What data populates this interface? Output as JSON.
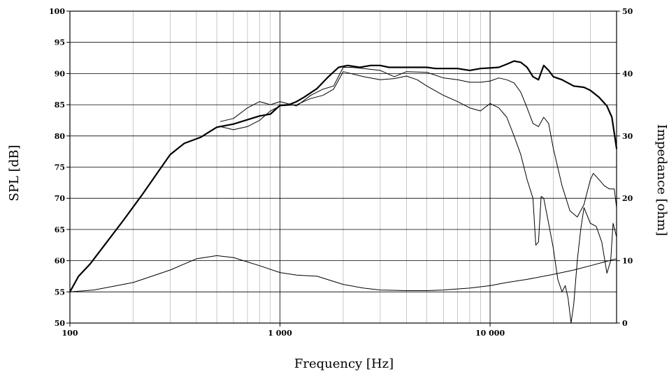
{
  "chart_data": {
    "type": "line",
    "title": "",
    "xlabel": "Frequency [Hz]",
    "ylabel": "SPL [dB]",
    "y2label": "Impedance [ohm]",
    "xscale": "log",
    "xlim": [
      100,
      40000
    ],
    "ylim": [
      50,
      100
    ],
    "y2lim": [
      0,
      50
    ],
    "grid": true,
    "legend": "none",
    "x_ticks": [
      {
        "value": 100,
        "label": "100"
      },
      {
        "value": 1000,
        "label": "1 000"
      },
      {
        "value": 10000,
        "label": "10 000"
      }
    ],
    "y_ticks": [
      "50",
      "55",
      "60",
      "65",
      "70",
      "75",
      "80",
      "85",
      "90",
      "95",
      "100"
    ],
    "y2_ticks": [
      "0",
      "10",
      "20",
      "30",
      "40",
      "50"
    ],
    "series": [
      {
        "axis": "left",
        "style": "bold",
        "points": [
          [
            100,
            55
          ],
          [
            110,
            57.5
          ],
          [
            125,
            59.5
          ],
          [
            150,
            63
          ],
          [
            180,
            66.5
          ],
          [
            220,
            70.5
          ],
          [
            260,
            74
          ],
          [
            300,
            77
          ],
          [
            350,
            78.8
          ],
          [
            420,
            79.8
          ],
          [
            500,
            81.4
          ],
          [
            600,
            81.9
          ],
          [
            700,
            82.6
          ],
          [
            800,
            83.2
          ],
          [
            900,
            83.5
          ],
          [
            1000,
            84.9
          ],
          [
            1100,
            85
          ],
          [
            1200,
            85.5
          ],
          [
            1300,
            86.2
          ],
          [
            1500,
            87.6
          ],
          [
            1700,
            89.5
          ],
          [
            1900,
            91
          ],
          [
            2100,
            91.3
          ],
          [
            2400,
            91
          ],
          [
            2700,
            91.3
          ],
          [
            3000,
            91.3
          ],
          [
            3300,
            91
          ],
          [
            3600,
            91
          ],
          [
            4000,
            91
          ],
          [
            4400,
            91
          ],
          [
            5000,
            91
          ],
          [
            5500,
            90.8
          ],
          [
            6000,
            90.8
          ],
          [
            7000,
            90.8
          ],
          [
            8000,
            90.5
          ],
          [
            9000,
            90.8
          ],
          [
            10000,
            90.9
          ],
          [
            11000,
            91
          ],
          [
            12000,
            91.5
          ],
          [
            13000,
            92
          ],
          [
            14000,
            91.8
          ],
          [
            15000,
            91
          ],
          [
            16000,
            89.5
          ],
          [
            17000,
            89
          ],
          [
            18000,
            91.3
          ],
          [
            19000,
            90.5
          ],
          [
            20000,
            89.5
          ],
          [
            22000,
            89
          ],
          [
            25000,
            88
          ],
          [
            28000,
            87.8
          ],
          [
            30000,
            87.3
          ],
          [
            33000,
            86.2
          ],
          [
            36000,
            84.8
          ],
          [
            38000,
            83
          ],
          [
            40000,
            78
          ]
        ]
      },
      {
        "axis": "left",
        "style": "thin",
        "points": [
          [
            520,
            82.3
          ],
          [
            600,
            82.8
          ],
          [
            700,
            84.5
          ],
          [
            800,
            85.5
          ],
          [
            900,
            85
          ],
          [
            1000,
            85.5
          ],
          [
            1200,
            84.8
          ],
          [
            1400,
            86.5
          ],
          [
            1600,
            87.5
          ],
          [
            1800,
            88
          ],
          [
            2000,
            91
          ],
          [
            2200,
            91
          ],
          [
            2500,
            90.8
          ],
          [
            3000,
            90.5
          ],
          [
            3500,
            89.5
          ],
          [
            4000,
            90.3
          ],
          [
            5000,
            90.2
          ],
          [
            6000,
            89.3
          ],
          [
            7000,
            89
          ],
          [
            8000,
            88.6
          ],
          [
            9000,
            88.6
          ],
          [
            10000,
            88.8
          ],
          [
            11000,
            89.3
          ],
          [
            12000,
            89
          ],
          [
            13000,
            88.5
          ],
          [
            14000,
            87
          ],
          [
            15000,
            84.5
          ],
          [
            16000,
            82
          ],
          [
            17000,
            81.5
          ],
          [
            18000,
            83
          ],
          [
            19000,
            82
          ],
          [
            20000,
            78
          ],
          [
            22000,
            72
          ],
          [
            24000,
            68
          ],
          [
            26000,
            67
          ],
          [
            28000,
            69
          ],
          [
            30000,
            73
          ],
          [
            31000,
            74
          ],
          [
            33000,
            73
          ],
          [
            35000,
            72
          ],
          [
            37000,
            71.5
          ],
          [
            39000,
            71.5
          ],
          [
            40000,
            68.5
          ]
        ]
      },
      {
        "axis": "left",
        "style": "thin",
        "points": [
          [
            520,
            81.5
          ],
          [
            600,
            81
          ],
          [
            700,
            81.5
          ],
          [
            800,
            82.5
          ],
          [
            900,
            84
          ],
          [
            1000,
            84.8
          ],
          [
            1200,
            85
          ],
          [
            1400,
            86
          ],
          [
            1600,
            86.5
          ],
          [
            1800,
            87.5
          ],
          [
            2000,
            90.3
          ],
          [
            2500,
            89.5
          ],
          [
            3000,
            89
          ],
          [
            3500,
            89.2
          ],
          [
            4000,
            89.6
          ],
          [
            4500,
            89
          ],
          [
            5000,
            88
          ],
          [
            6000,
            86.5
          ],
          [
            7000,
            85.5
          ],
          [
            8000,
            84.5
          ],
          [
            9000,
            84
          ],
          [
            10000,
            85.2
          ],
          [
            11000,
            84.5
          ],
          [
            12000,
            83
          ],
          [
            13000,
            80
          ],
          [
            14000,
            77
          ],
          [
            15000,
            73
          ],
          [
            16000,
            70
          ],
          [
            16500,
            62.5
          ],
          [
            17000,
            63
          ],
          [
            17500,
            70.3
          ],
          [
            18000,
            70
          ],
          [
            19000,
            66
          ],
          [
            20000,
            62
          ],
          [
            21000,
            57
          ],
          [
            22000,
            55
          ],
          [
            22800,
            56
          ],
          [
            23500,
            54
          ],
          [
            24300,
            50
          ],
          [
            25000,
            53
          ],
          [
            26000,
            60
          ],
          [
            27000,
            65
          ],
          [
            28000,
            68.5
          ],
          [
            30000,
            66
          ],
          [
            32000,
            65.5
          ],
          [
            34000,
            63
          ],
          [
            36000,
            58
          ],
          [
            37500,
            60
          ],
          [
            38500,
            66
          ],
          [
            40000,
            63.8
          ]
        ]
      },
      {
        "axis": "right",
        "style": "thin",
        "points": [
          [
            100,
            5
          ],
          [
            130,
            5.3
          ],
          [
            200,
            6.5
          ],
          [
            300,
            8.5
          ],
          [
            400,
            10.3
          ],
          [
            500,
            10.8
          ],
          [
            600,
            10.5
          ],
          [
            700,
            9.8
          ],
          [
            800,
            9.2
          ],
          [
            1000,
            8.1
          ],
          [
            1200,
            7.7
          ],
          [
            1500,
            7.5
          ],
          [
            2000,
            6.2
          ],
          [
            2500,
            5.6
          ],
          [
            3000,
            5.3
          ],
          [
            4000,
            5.2
          ],
          [
            5000,
            5.2
          ],
          [
            6000,
            5.3
          ],
          [
            8000,
            5.6
          ],
          [
            10000,
            6.0
          ],
          [
            12000,
            6.5
          ],
          [
            15000,
            7.0
          ],
          [
            20000,
            7.8
          ],
          [
            25000,
            8.5
          ],
          [
            30000,
            9.2
          ],
          [
            35000,
            9.8
          ],
          [
            40000,
            10.3
          ]
        ]
      }
    ]
  }
}
